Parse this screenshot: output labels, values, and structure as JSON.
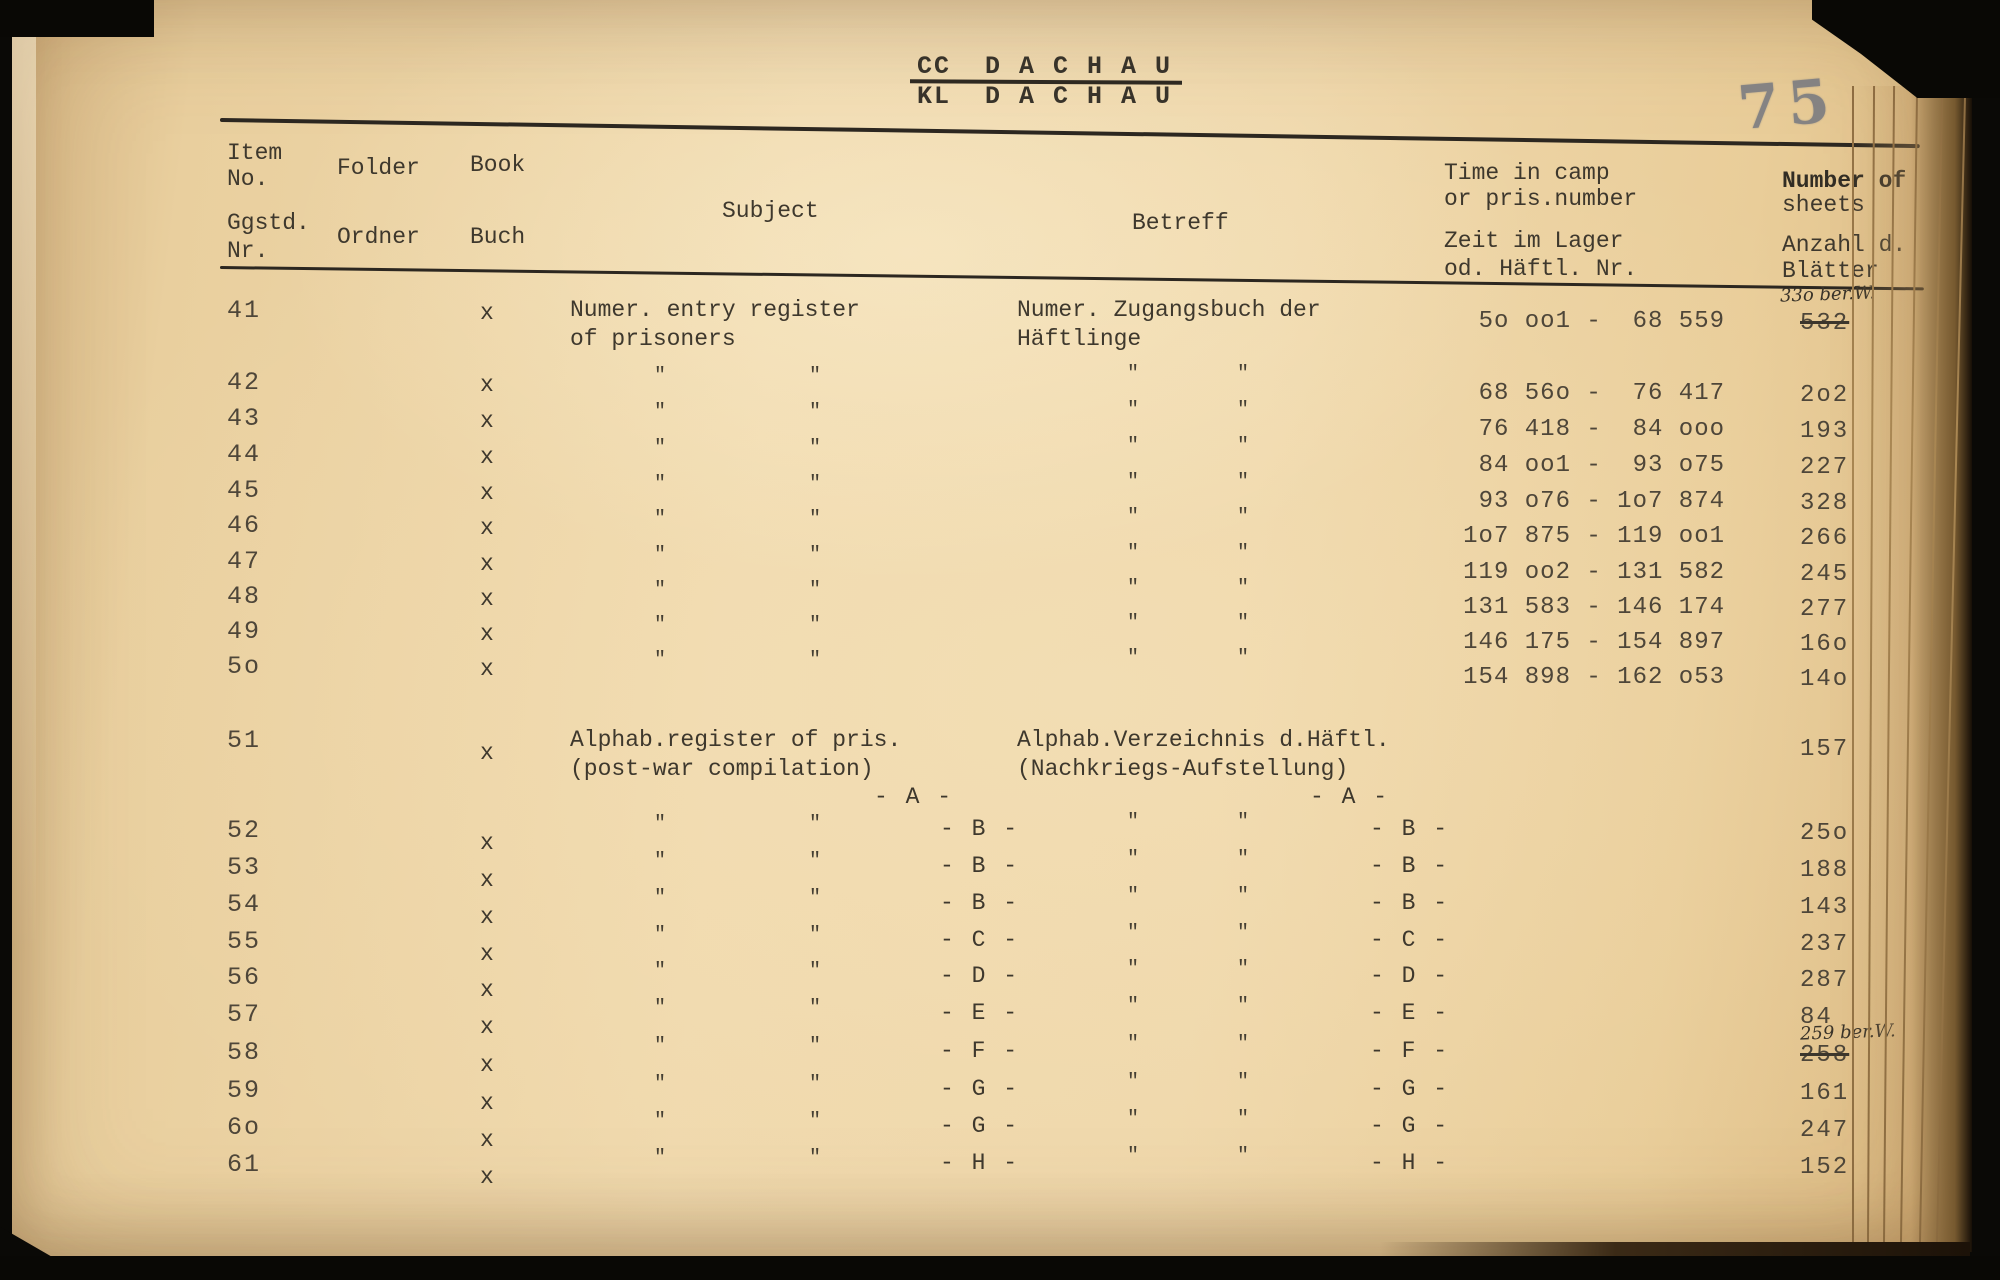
{
  "header": {
    "title_line1": "CC  D A C H A U",
    "title_line2": "KL  D A C H A U",
    "stamp_number": "75"
  },
  "table": {
    "ditto_mark": "\"",
    "columns": {
      "item_en1": "Item",
      "item_en2": "No.",
      "item_de1": "Ggstd.",
      "item_de2": "Nr.",
      "folder_en": "Folder",
      "folder_de": "Ordner",
      "book_en": "Book",
      "book_de": "Buch",
      "subject_en": "Subject",
      "betreff_de": "Betreff",
      "time_en1": "Time in camp",
      "time_en2": "or pris.number",
      "time_de1": "Zeit im Lager",
      "time_de2": "od. Häftl. Nr.",
      "sheets_en1": "Number of",
      "sheets_en2": "sheets",
      "sheets_de1": "Anzahl d.",
      "sheets_de2": "Blätter"
    },
    "rows": [
      {
        "item": "41",
        "book": "x",
        "subject_lines": [
          "Numer. entry register",
          "of prisoners"
        ],
        "betreff_lines": [
          "Numer. Zugangsbuch der",
          "Häftlinge"
        ],
        "range": "5o oo1 -  68 559",
        "sheets": "532",
        "sheets_struck": true,
        "note": "33o ber.W."
      },
      {
        "item": "42",
        "book": "x",
        "dittos": true,
        "range": "68 56o -  76 417",
        "sheets": "2o2"
      },
      {
        "item": "43",
        "book": "x",
        "dittos": true,
        "range": "76 418 -  84 ooo",
        "sheets": "193"
      },
      {
        "item": "44",
        "book": "x",
        "dittos": true,
        "range": "84 oo1 -  93 o75",
        "sheets": "227"
      },
      {
        "item": "45",
        "book": "x",
        "dittos": true,
        "range": "93 o76 - 1o7 874",
        "sheets": "328"
      },
      {
        "item": "46",
        "book": "x",
        "dittos": true,
        "range": "1o7 875 - 119 oo1",
        "sheets": "266"
      },
      {
        "item": "47",
        "book": "x",
        "dittos": true,
        "range": "119 oo2 - 131 582",
        "sheets": "245"
      },
      {
        "item": "48",
        "book": "x",
        "dittos": true,
        "range": "131 583 - 146 174",
        "sheets": "277"
      },
      {
        "item": "49",
        "book": "x",
        "dittos": true,
        "range": "146 175 - 154 897",
        "sheets": "16o"
      },
      {
        "item": "5o",
        "book": "x",
        "dittos": true,
        "range": "154 898 - 162 o53",
        "sheets": "14o"
      },
      {
        "item": "51",
        "book": "x",
        "subject_lines": [
          "Alphab.register of pris.",
          "(post-war compilation)"
        ],
        "betreff_lines": [
          "Alphab.Verzeichnis d.Häftl.",
          "(Nachkriegs-Aufstellung)"
        ],
        "letter": "- A -",
        "letter_standalone": true,
        "sheets": "157"
      },
      {
        "item": "52",
        "book": "x",
        "dittos": true,
        "letter": "- B -",
        "sheets": "25o"
      },
      {
        "item": "53",
        "book": "x",
        "dittos": true,
        "letter": "- B -",
        "sheets": "188"
      },
      {
        "item": "54",
        "book": "x",
        "dittos": true,
        "letter": "- B -",
        "sheets": "143"
      },
      {
        "item": "55",
        "book": "x",
        "dittos": true,
        "letter": "- C -",
        "sheets": "237"
      },
      {
        "item": "56",
        "book": "x",
        "dittos": true,
        "letter": "- D -",
        "sheets": "287"
      },
      {
        "item": "57",
        "book": "x",
        "dittos": true,
        "letter": "- E -",
        "sheets": "84"
      },
      {
        "item": "58",
        "book": "x",
        "dittos": true,
        "letter": "- F -",
        "sheets": "258",
        "sheets_struck": true,
        "note": "259 ber.W."
      },
      {
        "item": "59",
        "book": "x",
        "dittos": true,
        "letter": "- G -",
        "sheets": "161"
      },
      {
        "item": "6o",
        "book": "x",
        "dittos": true,
        "letter": "- G -",
        "sheets": "247"
      },
      {
        "item": "61",
        "book": "x",
        "dittos": true,
        "letter": "- H -",
        "sheets": "152"
      }
    ]
  }
}
